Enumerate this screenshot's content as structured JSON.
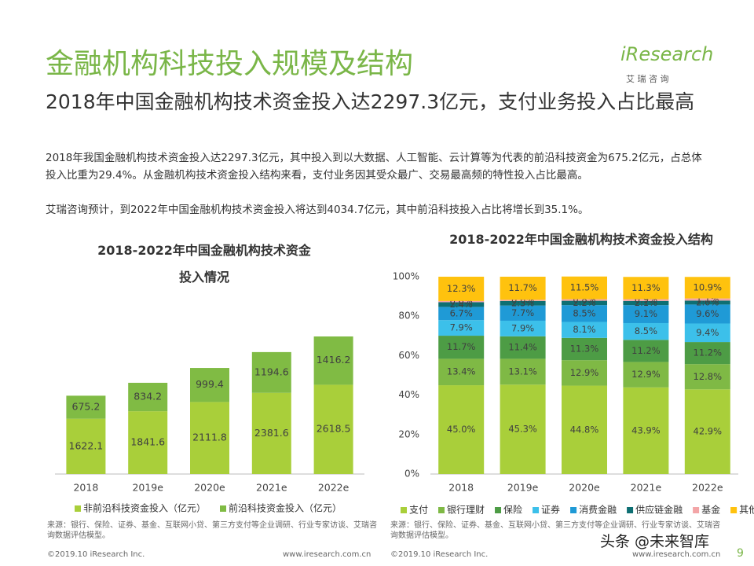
{
  "header": {
    "title": "金融机构科技投入规模及结构",
    "subtitle": "2018年中国金融机构技术资金投入达2297.3亿元，支付业务投入占比最高",
    "logo": "iResearch",
    "logo_sub": "艾 瑞 咨 询"
  },
  "body": [
    "2018年我国金融机构技术资金投入达2297.3亿元，其中投入到以大数据、人工智能、云计算等为代表的前沿科技资金为675.2亿元，占总体投入比重为29.4%。从金融机构技术资金投入结构来看，支付业务因其受众最广、交易最高频的特性投入占比最高。",
    "艾瑞咨询预计，到2022年中国金融机构技术资金投入将达到4034.7亿元，其中前沿科技投入占比将增长到35.1%。"
  ],
  "chart_data": [
    {
      "type": "stacked-bar",
      "title": "2018-2022年中国金融机构技术资金投入情况",
      "categories": [
        "2018",
        "2019e",
        "2020e",
        "2021e",
        "2022e"
      ],
      "series": [
        {
          "name": "非前沿科技资金投入（亿元）",
          "color": "#a9cf3a",
          "values": [
            1622.1,
            1841.6,
            2111.8,
            2381.6,
            2618.5
          ]
        },
        {
          "name": "前沿科技资金投入（亿元）",
          "color": "#80bb44",
          "values": [
            675.2,
            834.2,
            999.4,
            1194.6,
            1416.2
          ]
        }
      ],
      "source": "来源：银行、保险、证券、基金、互联网小贷、第三方支付等企业调研、行业专家访谈、艾瑞咨询数据评估模型。"
    },
    {
      "type": "stacked-percent-bar",
      "title": "2018-2022年中国金融机构技术资金投入结构",
      "categories": [
        "2018",
        "2019e",
        "2020e",
        "2021e",
        "2022e"
      ],
      "ylim": [
        0,
        100
      ],
      "yticks": [
        {
          "value": 0,
          "label": "0%"
        },
        {
          "value": 20,
          "label": "20%"
        },
        {
          "value": 40,
          "label": "40%"
        },
        {
          "value": 60,
          "label": "60%"
        },
        {
          "value": 80,
          "label": "80%"
        },
        {
          "value": 100,
          "label": "100%"
        }
      ],
      "series": [
        {
          "name": "支付",
          "color": "#a9cf3a",
          "values": [
            45.0,
            45.3,
            44.8,
            43.9,
            42.9
          ],
          "value_labels": [
            "45.0%",
            "45.3%",
            "44.8%",
            "43.9%",
            "42.9%"
          ]
        },
        {
          "name": "银行理财",
          "color": "#7fb945",
          "values": [
            13.4,
            13.1,
            12.9,
            12.9,
            12.8
          ],
          "value_labels": [
            "13.4%",
            "13.1%",
            "12.9%",
            "12.9%",
            "12.8%"
          ]
        },
        {
          "name": "保险",
          "color": "#4d9c45",
          "values": [
            11.7,
            11.4,
            11.3,
            11.2,
            11.2
          ],
          "value_labels": [
            "11.7%",
            "11.4%",
            "11.3%",
            "11.2%",
            "11.2%"
          ]
        },
        {
          "name": "证券",
          "color": "#3cc0ea",
          "values": [
            7.9,
            7.9,
            8.1,
            8.5,
            9.4
          ],
          "value_labels": [
            "7.9%",
            "7.9%",
            "8.1%",
            "8.5%",
            "9.4%"
          ]
        },
        {
          "name": "消费金融",
          "color": "#1f9ad6",
          "values": [
            6.7,
            7.7,
            8.5,
            9.1,
            9.6
          ],
          "value_labels": [
            "6.7%",
            "7.7%",
            "8.5%",
            "9.1%",
            "9.6%"
          ]
        },
        {
          "name": "供应链金融",
          "color": "#0e6f73",
          "values": [
            2.4,
            2.3,
            2.2,
            2.1,
            2.0
          ],
          "value_labels": [
            "2.4%",
            "2.3%",
            "2.2%",
            "2.1%",
            "2.0%"
          ]
        },
        {
          "name": "基金",
          "color": "#f3a5a7",
          "values": [
            0.6,
            0.6,
            0.8,
            0.9,
            1.1
          ],
          "value_labels": [
            "0.6%",
            "0.6%",
            "0.8%",
            "0.9%",
            "1.1%"
          ]
        },
        {
          "name": "其他",
          "color": "#ffc20e",
          "values": [
            12.3,
            11.7,
            11.5,
            11.3,
            10.9
          ],
          "value_labels": [
            "12.3%",
            "11.7%",
            "11.5%",
            "11.3%",
            "10.9%"
          ]
        }
      ],
      "source": "来源：银行、保险、证券、基金、互联网小贷、第三方支付等企业调研、行业专家访谈、艾瑞咨询数据评估模型。"
    }
  ],
  "footer": {
    "copyright": "©2019.10 iResearch Inc.",
    "website": "www.iresearch.com.cn",
    "page": "9",
    "watermark": "头条 @未来智库"
  }
}
